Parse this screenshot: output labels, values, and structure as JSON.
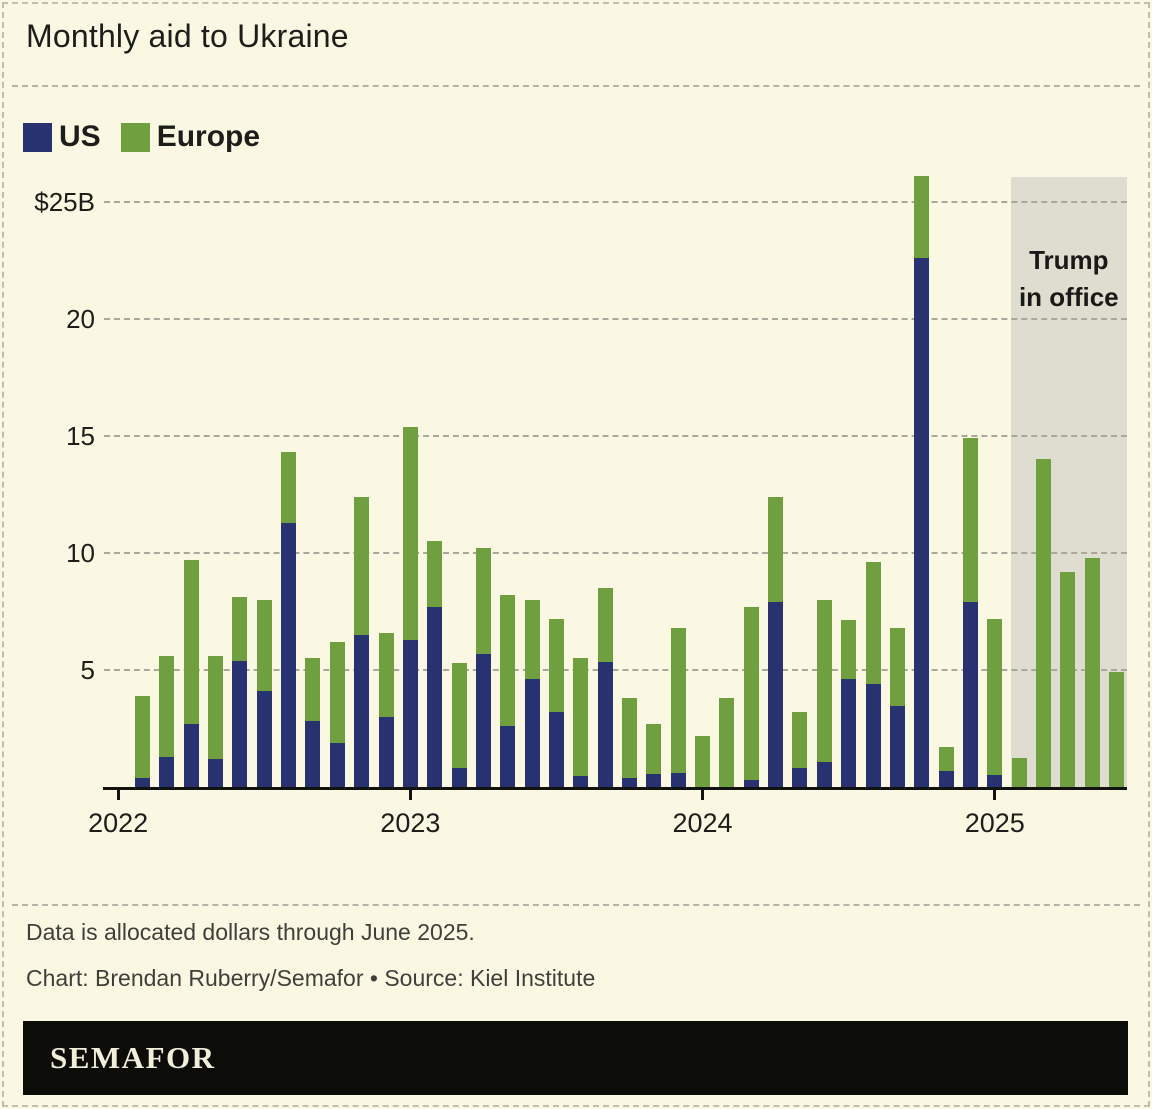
{
  "title": "Monthly aid to Ukraine",
  "legend": [
    {
      "label": "US",
      "color": "#283271"
    },
    {
      "label": "Europe",
      "color": "#6f9f3e"
    }
  ],
  "annotation": {
    "line1": "Trump",
    "line2": "in office"
  },
  "y_axis": {
    "labels": [
      "$25B",
      "20",
      "15",
      "10",
      "5"
    ],
    "values": [
      25,
      20,
      15,
      10,
      5
    ]
  },
  "x_axis": {
    "labels": [
      "2022",
      "2023",
      "2024",
      "2025"
    ]
  },
  "footnote": "Data is allocated dollars through June 2025.",
  "credit": "Chart: Brendan Ruberry/Semafor • Source: Kiel Institute",
  "logo": "SEMAFOR",
  "colors": {
    "background": "#faf8e3",
    "us": "#283271",
    "europe": "#6f9f3e",
    "highlight_band": "#deddd0",
    "gridline": "#a9a89a",
    "axis": "#12120f",
    "logo_bar": "#0c0c09",
    "logo_text": "#f1eeda"
  },
  "chart_data": {
    "type": "bar",
    "stacked": true,
    "unit": "$B",
    "title": "Monthly aid to Ukraine",
    "ylim": [
      0,
      26.5
    ],
    "gridlines_at": [
      5,
      10,
      15,
      20,
      25
    ],
    "categories": [
      "Feb 2022",
      "Mar 2022",
      "Apr 2022",
      "May 2022",
      "Jun 2022",
      "Jul 2022",
      "Aug 2022",
      "Sep 2022",
      "Oct 2022",
      "Nov 2022",
      "Dec 2022",
      "Jan 2023",
      "Feb 2023",
      "Mar 2023",
      "Apr 2023",
      "May 2023",
      "Jun 2023",
      "Jul 2023",
      "Aug 2023",
      "Sep 2023",
      "Oct 2023",
      "Nov 2023",
      "Dec 2023",
      "Jan 2024",
      "Feb 2024",
      "Mar 2024",
      "Apr 2024",
      "May 2024",
      "Jun 2024",
      "Jul 2024",
      "Aug 2024",
      "Sep 2024",
      "Oct 2024",
      "Nov 2024",
      "Dec 2024",
      "Jan 2025",
      "Feb 2025",
      "Mar 2025",
      "Apr 2025",
      "May 2025",
      "Jun 2025"
    ],
    "series": [
      {
        "name": "US",
        "color": "#283271",
        "values": [
          0.4,
          1.3,
          2.7,
          1.2,
          5.4,
          4.1,
          11.3,
          2.8,
          1.9,
          6.5,
          3.0,
          6.3,
          7.7,
          0.8,
          5.7,
          2.6,
          4.6,
          3.2,
          0.45,
          5.35,
          0.4,
          0.55,
          0.6,
          0,
          0,
          0.3,
          7.9,
          0.8,
          1.05,
          4.6,
          4.4,
          3.45,
          22.6,
          0.7,
          7.9,
          0.5,
          0,
          0,
          0,
          0,
          0
        ]
      },
      {
        "name": "Europe",
        "color": "#6f9f3e",
        "values": [
          3.5,
          4.3,
          7.0,
          4.4,
          2.7,
          3.9,
          3.0,
          2.7,
          4.3,
          5.9,
          3.6,
          9.1,
          2.8,
          4.5,
          4.5,
          5.6,
          3.4,
          4.0,
          5.05,
          3.15,
          3.4,
          2.15,
          6.2,
          2.2,
          3.8,
          7.4,
          4.5,
          2.4,
          6.95,
          2.55,
          5.2,
          3.35,
          3.5,
          1.0,
          7.0,
          6.7,
          1.25,
          14.0,
          9.2,
          9.8,
          4.9
        ]
      }
    ],
    "highlight_region": {
      "label": "Trump in office",
      "start": "Feb 2025",
      "end": "Jun 2025"
    },
    "year_tick_labels": [
      "2022",
      "2023",
      "2024",
      "2025"
    ]
  }
}
